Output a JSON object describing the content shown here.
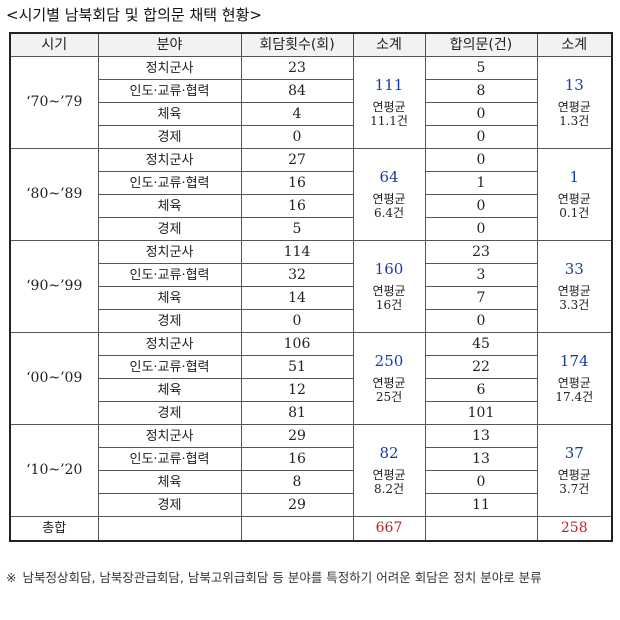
{
  "title": "<시기별 남북회담 및 합의문 채택 현황>",
  "headers": {
    "period": "시기",
    "field": "분야",
    "meetings": "회담횟수(회)",
    "meetings_subtotal": "소계",
    "agreements": "합의문(건)",
    "agreements_subtotal": "소계"
  },
  "periods": [
    {
      "label": "‘70~’79",
      "rows": [
        {
          "field": "정치군사",
          "meetings": "23",
          "agreements": "5"
        },
        {
          "field": "인도·교류·협력",
          "meetings": "84",
          "agreements": "8"
        },
        {
          "field": "체육",
          "meetings": "4",
          "agreements": "0"
        },
        {
          "field": "경제",
          "meetings": "0",
          "agreements": "0"
        }
      ],
      "meetings_subtotal": {
        "total": "111",
        "avg_label": "연평균",
        "avg": "11.1건"
      },
      "agreements_subtotal": {
        "total": "13",
        "avg_label": "연평균",
        "avg": "1.3건"
      }
    },
    {
      "label": "‘80~’89",
      "rows": [
        {
          "field": "정치군사",
          "meetings": "27",
          "agreements": "0"
        },
        {
          "field": "인도·교류·협력",
          "meetings": "16",
          "agreements": "1"
        },
        {
          "field": "체육",
          "meetings": "16",
          "agreements": "0"
        },
        {
          "field": "경제",
          "meetings": "5",
          "agreements": "0"
        }
      ],
      "meetings_subtotal": {
        "total": "64",
        "avg_label": "연평균",
        "avg": "6.4건"
      },
      "agreements_subtotal": {
        "total": "1",
        "avg_label": "연평균",
        "avg": "0.1건"
      }
    },
    {
      "label": "‘90~’99",
      "rows": [
        {
          "field": "정치군사",
          "meetings": "114",
          "agreements": "23"
        },
        {
          "field": "인도·교류·협력",
          "meetings": "32",
          "agreements": "3"
        },
        {
          "field": "체육",
          "meetings": "14",
          "agreements": "7"
        },
        {
          "field": "경제",
          "meetings": "0",
          "agreements": "0"
        }
      ],
      "meetings_subtotal": {
        "total": "160",
        "avg_label": "연평균",
        "avg": "16건"
      },
      "agreements_subtotal": {
        "total": "33",
        "avg_label": "연평균",
        "avg": "3.3건"
      }
    },
    {
      "label": "‘00~’09",
      "rows": [
        {
          "field": "정치군사",
          "meetings": "106",
          "agreements": "45"
        },
        {
          "field": "인도·교류·협력",
          "meetings": "51",
          "agreements": "22"
        },
        {
          "field": "체육",
          "meetings": "12",
          "agreements": "6"
        },
        {
          "field": "경제",
          "meetings": "81",
          "agreements": "101"
        }
      ],
      "meetings_subtotal": {
        "total": "250",
        "avg_label": "연평균",
        "avg": "25건"
      },
      "agreements_subtotal": {
        "total": "174",
        "avg_label": "연평균",
        "avg": "17.4건"
      }
    },
    {
      "label": "‘10~’20",
      "rows": [
        {
          "field": "정치군사",
          "meetings": "29",
          "agreements": "13"
        },
        {
          "field": "인도·교류·협력",
          "meetings": "16",
          "agreements": "13"
        },
        {
          "field": "체육",
          "meetings": "8",
          "agreements": "0"
        },
        {
          "field": "경제",
          "meetings": "29",
          "agreements": "11"
        }
      ],
      "meetings_subtotal": {
        "total": "82",
        "avg_label": "연평균",
        "avg": "8.2건"
      },
      "agreements_subtotal": {
        "total": "37",
        "avg_label": "연평균",
        "avg": "3.7건"
      }
    }
  ],
  "total": {
    "label": "총합",
    "meetings": "667",
    "agreements": "258"
  },
  "footnote": {
    "mark": "※",
    "text": "남북정상회담, 남북장관급회담, 남북고위급회담 등 분야를 특정하기 어려운 회담은 정치 분야로 분류"
  },
  "colors": {
    "subtotal": "#1a3c9e",
    "total": "#c0202a"
  }
}
